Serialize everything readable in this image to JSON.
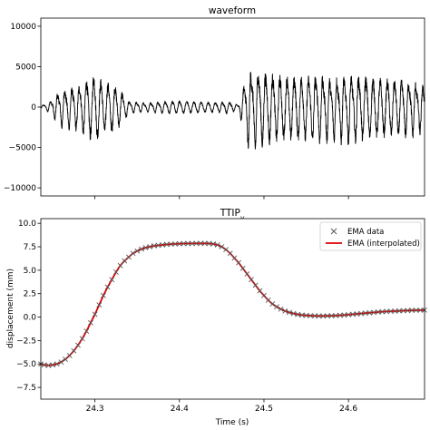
{
  "chart_data": [
    {
      "type": "line",
      "title": "waveform",
      "xlabel": "",
      "ylabel": "",
      "xlim": [
        24.236,
        24.69
      ],
      "ylim": [
        -11000,
        11000
      ],
      "yticks": [
        10000,
        5000,
        0,
        -5000,
        -10000
      ],
      "ytick_labels": [
        "10000",
        "5000",
        "0",
        "−5000",
        "−10000"
      ],
      "xticks": [
        24.3,
        24.4,
        24.5,
        24.6
      ],
      "xtick_labels_shown": false,
      "grid": false,
      "series_color": "#000000",
      "envelope": {
        "x": [
          24.236,
          24.245,
          24.26,
          24.28,
          24.3,
          24.31,
          24.32,
          24.33,
          24.34,
          24.36,
          24.38,
          24.4,
          24.42,
          24.44,
          24.46,
          24.47,
          24.475,
          24.48,
          24.49,
          24.5,
          24.52,
          24.54,
          24.56,
          24.58,
          24.6,
          24.62,
          24.64,
          24.66,
          24.68,
          24.69
        ],
        "amplitude": [
          200,
          600,
          2500,
          3000,
          4800,
          3500,
          3500,
          2500,
          800,
          600,
          800,
          900,
          800,
          700,
          800,
          300,
          2500,
          5000,
          5500,
          5000,
          4500,
          4500,
          4500,
          4000,
          4500,
          4500,
          4000,
          4000,
          3500,
          3000
        ]
      }
    },
    {
      "type": "line",
      "title": "TTIP",
      "title_subscript": "y",
      "xlabel": "Time (s)",
      "ylabel": "displacement (mm)",
      "xlim": [
        24.236,
        24.69
      ],
      "ylim": [
        -8.75,
        10.5
      ],
      "yticks": [
        10.0,
        7.5,
        5.0,
        2.5,
        0.0,
        -2.5,
        -5.0,
        -7.5
      ],
      "ytick_labels": [
        "10.0",
        "7.5",
        "5.0",
        "2.5",
        "0.0",
        "−2.5",
        "−5.0",
        "−7.5"
      ],
      "xticks": [
        24.3,
        24.4,
        24.5,
        24.6
      ],
      "xtick_labels": [
        "24.3",
        "24.4",
        "24.5",
        "24.6"
      ],
      "grid": false,
      "legend_position": "top-right",
      "series": [
        {
          "name": "EMA data",
          "marker": "x",
          "color": "#555555",
          "x": [
            24.236,
            24.24,
            24.245,
            24.25,
            24.255,
            24.26,
            24.265,
            24.27,
            24.275,
            24.28,
            24.285,
            24.29,
            24.295,
            24.3,
            24.305,
            24.31,
            24.315,
            24.32,
            24.325,
            24.33,
            24.335,
            24.34,
            24.345,
            24.35,
            24.355,
            24.36,
            24.365,
            24.37,
            24.375,
            24.38,
            24.385,
            24.39,
            24.395,
            24.4,
            24.405,
            24.41,
            24.415,
            24.42,
            24.425,
            24.43,
            24.435,
            24.44,
            24.445,
            24.45,
            24.455,
            24.46,
            24.465,
            24.47,
            24.475,
            24.48,
            24.485,
            24.49,
            24.495,
            24.5,
            24.505,
            24.51,
            24.515,
            24.52,
            24.525,
            24.53,
            24.535,
            24.54,
            24.545,
            24.55,
            24.555,
            24.56,
            24.565,
            24.57,
            24.575,
            24.58,
            24.585,
            24.59,
            24.595,
            24.6,
            24.605,
            24.61,
            24.615,
            24.62,
            24.625,
            24.63,
            24.635,
            24.64,
            24.645,
            24.65,
            24.655,
            24.66,
            24.665,
            24.67,
            24.675,
            24.68,
            24.685,
            24.69
          ],
          "y": [
            -5.0,
            -5.1,
            -5.15,
            -5.1,
            -5.0,
            -4.8,
            -4.5,
            -4.1,
            -3.6,
            -3.0,
            -2.3,
            -1.5,
            -0.6,
            0.3,
            1.3,
            2.3,
            3.2,
            4.0,
            4.8,
            5.5,
            6.0,
            6.4,
            6.8,
            7.05,
            7.25,
            7.4,
            7.5,
            7.6,
            7.65,
            7.7,
            7.75,
            7.78,
            7.8,
            7.82,
            7.84,
            7.85,
            7.85,
            7.86,
            7.86,
            7.86,
            7.85,
            7.8,
            7.7,
            7.5,
            7.2,
            6.8,
            6.3,
            5.8,
            5.2,
            4.6,
            4.0,
            3.4,
            2.8,
            2.3,
            1.8,
            1.4,
            1.1,
            0.85,
            0.65,
            0.5,
            0.38,
            0.28,
            0.22,
            0.18,
            0.15,
            0.13,
            0.12,
            0.12,
            0.13,
            0.14,
            0.16,
            0.19,
            0.22,
            0.26,
            0.3,
            0.34,
            0.38,
            0.42,
            0.46,
            0.5,
            0.54,
            0.57,
            0.6,
            0.62,
            0.64,
            0.66,
            0.68,
            0.7,
            0.72,
            0.73,
            0.74,
            0.75
          ]
        },
        {
          "name": "EMA (interpolated)",
          "line": "solid",
          "color": "#dd0000"
        }
      ]
    }
  ]
}
